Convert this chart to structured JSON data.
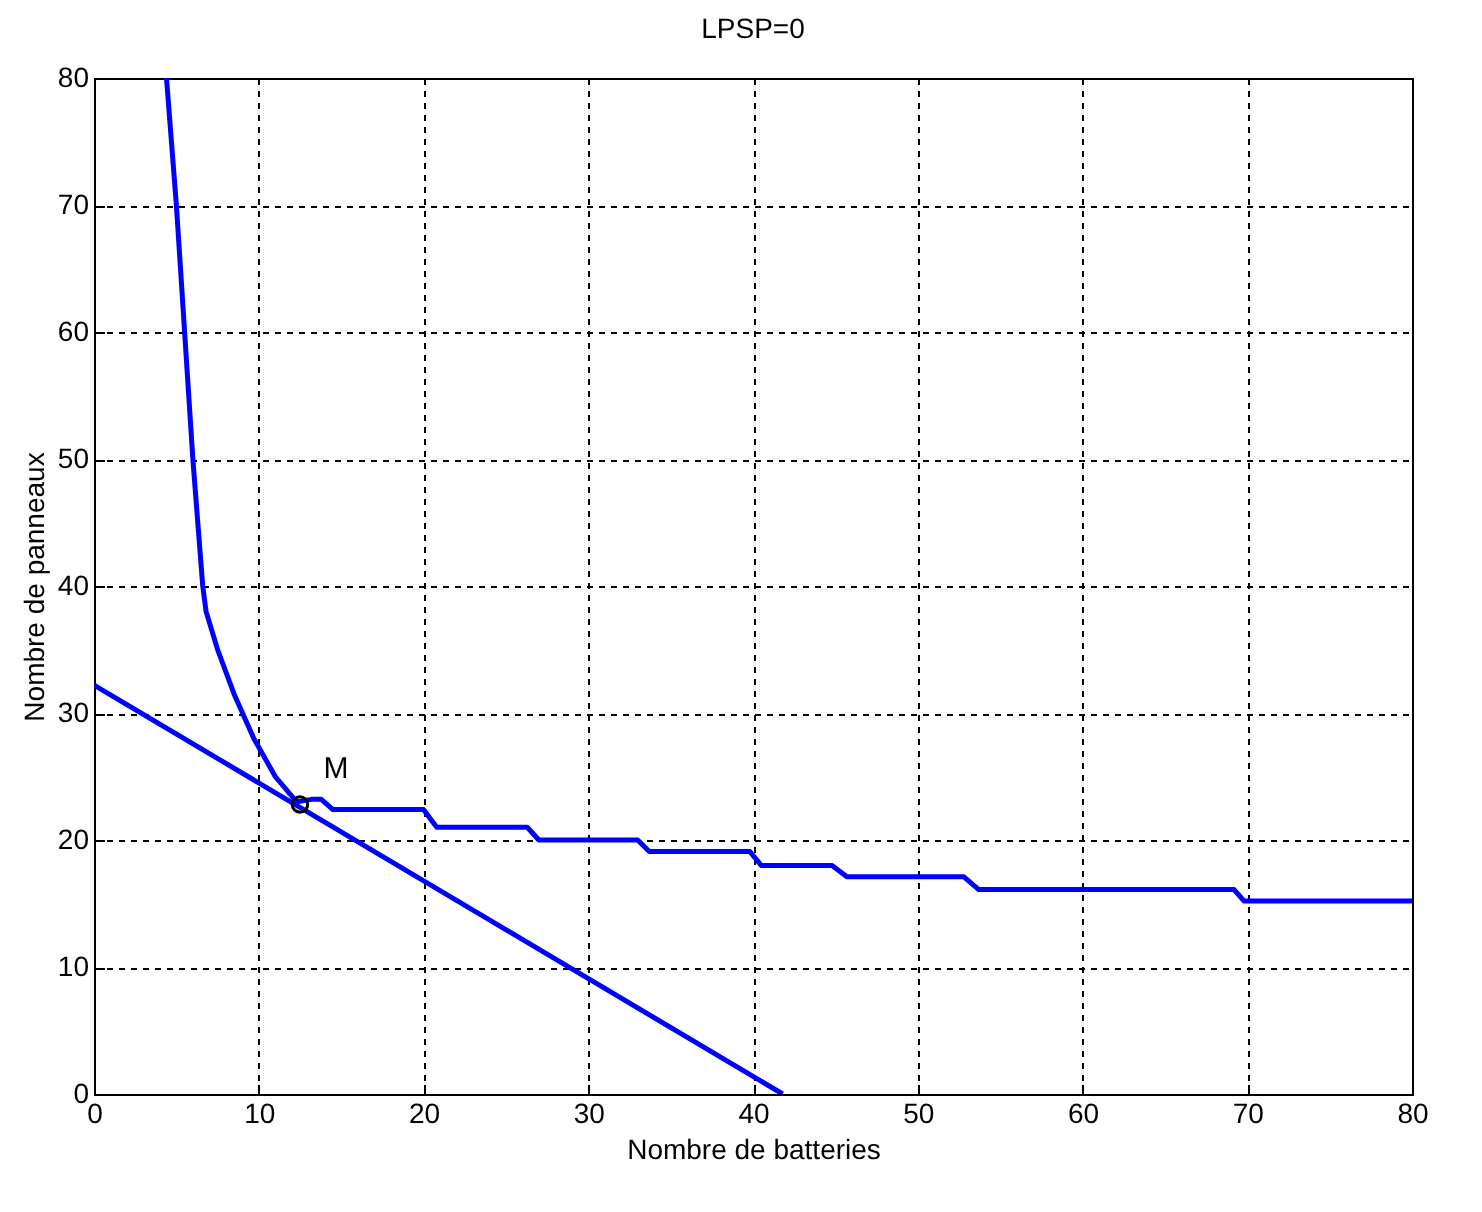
{
  "chart_data": {
    "type": "line",
    "title": "LPSP=0",
    "xlabel": "Nombre de batteries",
    "ylabel": "Nombre de panneaux",
    "xlim": [
      0,
      80
    ],
    "ylim": [
      0,
      80
    ],
    "xticks": [
      0,
      10,
      20,
      30,
      40,
      50,
      60,
      70,
      80
    ],
    "yticks": [
      0,
      10,
      20,
      30,
      40,
      50,
      60,
      70,
      80
    ],
    "grid": true,
    "line_style": "solid",
    "series": [
      {
        "color": "#0000ff",
        "x": [
          4.4,
          5.0,
          5.5,
          6.0,
          6.6,
          6.8,
          7.5,
          8.5,
          9.7,
          11,
          12.3,
          13.2,
          13.8,
          14.5,
          20,
          20.8,
          26.3,
          27,
          33,
          33.7,
          39.8,
          40.5,
          44.8,
          45.7,
          52.8,
          53.7,
          69.2,
          69.8,
          80
        ],
        "values": [
          80,
          70,
          60,
          50,
          40,
          38,
          35,
          31.5,
          28,
          25,
          23,
          23.2,
          23.2,
          22.4,
          22.4,
          21,
          21,
          20,
          20,
          19.1,
          19.1,
          18,
          18,
          17.1,
          17.1,
          16.1,
          16.1,
          15.2,
          15.2
        ]
      },
      {
        "color": "#0000ff",
        "x": [
          0,
          41.8
        ],
        "values": [
          32.2,
          0
        ]
      },
      {
        "type": "scatter",
        "marker": "circle",
        "color": "#000000",
        "x": [
          12.5
        ],
        "values": [
          22.8
        ]
      }
    ],
    "annotations": [
      {
        "text": "M",
        "x": 12.5,
        "y": 22.8
      }
    ]
  }
}
